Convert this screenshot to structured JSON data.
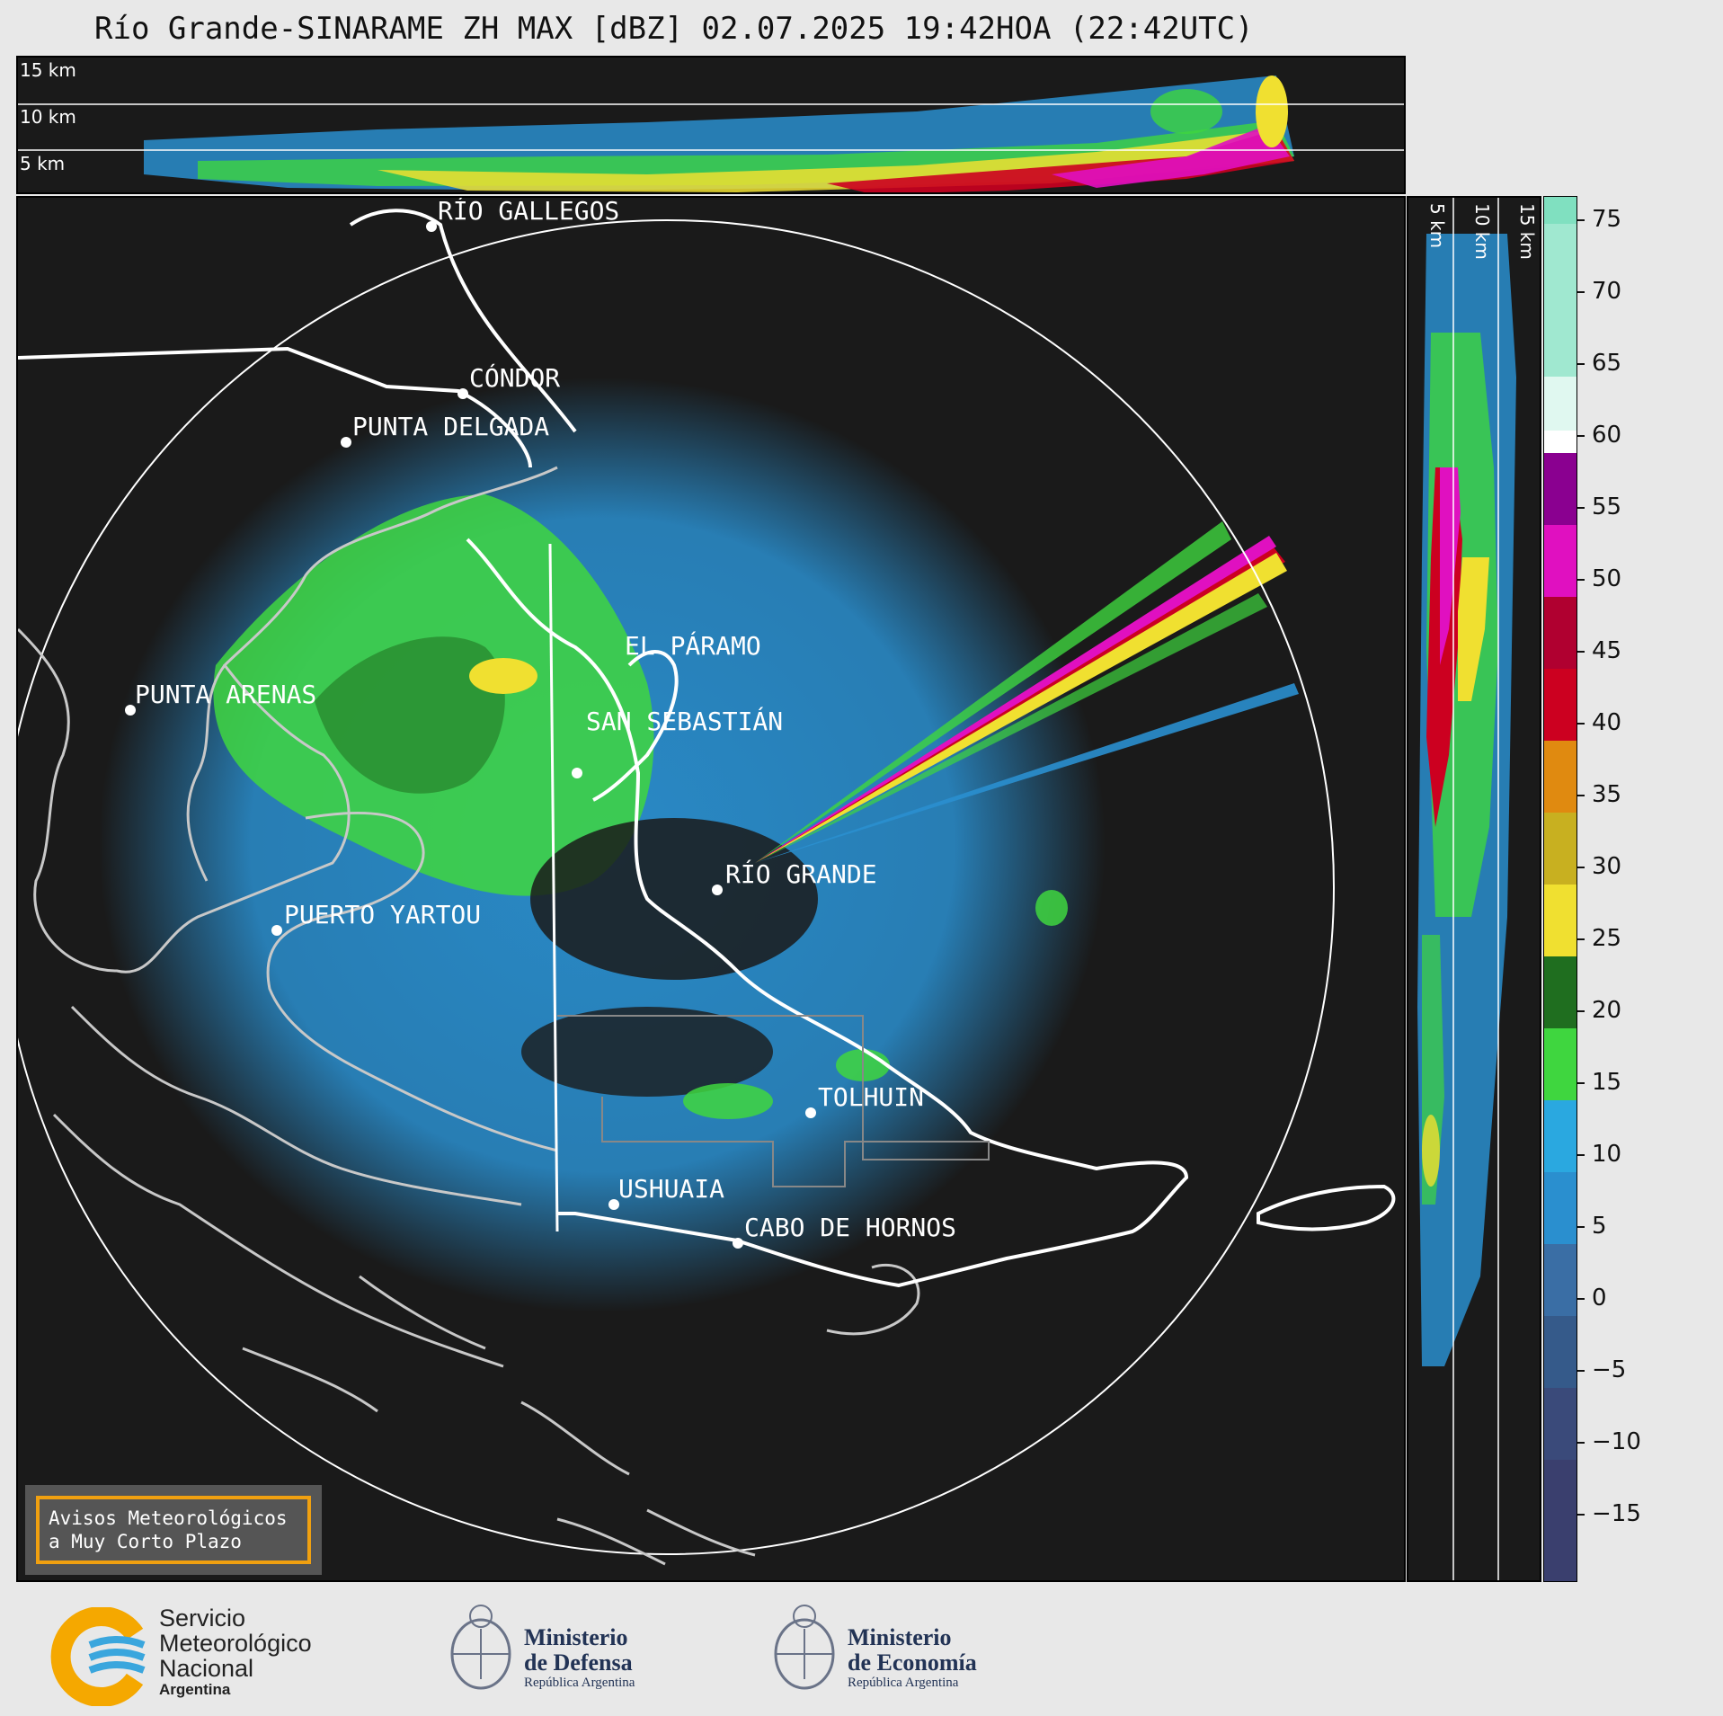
{
  "title": "Río Grande-SINARAME ZH MAX [dBZ] 02.07.2025 19:42HOA (22:42UTC)",
  "top_panel": {
    "height_labels": [
      "15 km",
      "10 km",
      "5 km"
    ]
  },
  "side_panel": {
    "height_labels": [
      "5 km",
      "10 km",
      "15 km"
    ]
  },
  "map": {
    "cities": [
      {
        "name": "RÍO GALLEGOS"
      },
      {
        "name": "CÓNDOR"
      },
      {
        "name": "PUNTA DELGADA"
      },
      {
        "name": "PUNTA ARENAS"
      },
      {
        "name": "EL PÁRAMO"
      },
      {
        "name": "SAN SEBASTIÁN"
      },
      {
        "name": "RÍO GRANDE"
      },
      {
        "name": "PUERTO YARTOU"
      },
      {
        "name": "TOLHUIN"
      },
      {
        "name": "USHUAIA"
      },
      {
        "name": "CABO DE HORNOS"
      }
    ]
  },
  "colorbar": {
    "unit": "dBZ",
    "ticks": [
      "75",
      "70",
      "65",
      "60",
      "55",
      "50",
      "45",
      "40",
      "35",
      "30",
      "25",
      "20",
      "15",
      "10",
      "5",
      "0",
      "−5",
      "−10",
      "−15"
    ],
    "range": [
      -20,
      77
    ],
    "colors": {
      "low": "#3a3f6e",
      "mid_low": "#3a6ea5",
      "blue": "#2a8fcf",
      "light_blue": "#2aa8e0",
      "green": "#3fd63f",
      "dark_green": "#1f6e1f",
      "yellow": "#f0e030",
      "orange": "#e08a10",
      "red": "#cc0020",
      "dark_red": "#8a0000",
      "magenta": "#e010c0",
      "purple": "#8a0090",
      "white": "#ffffff",
      "mint": "#80e0c0"
    }
  },
  "avisos": {
    "line1": "Avisos Meteorológicos",
    "line2": "a Muy Corto Plazo"
  },
  "logos": {
    "smn": {
      "line1": "Servicio",
      "line2": "Meteorológico",
      "line3": "Nacional",
      "line4": "Argentina"
    },
    "defensa": {
      "line1": "Ministerio",
      "line2": "de Defensa",
      "line3": "República Argentina"
    },
    "economia": {
      "line1": "Ministerio",
      "line2": "de Economía",
      "line3": "República Argentina"
    }
  }
}
